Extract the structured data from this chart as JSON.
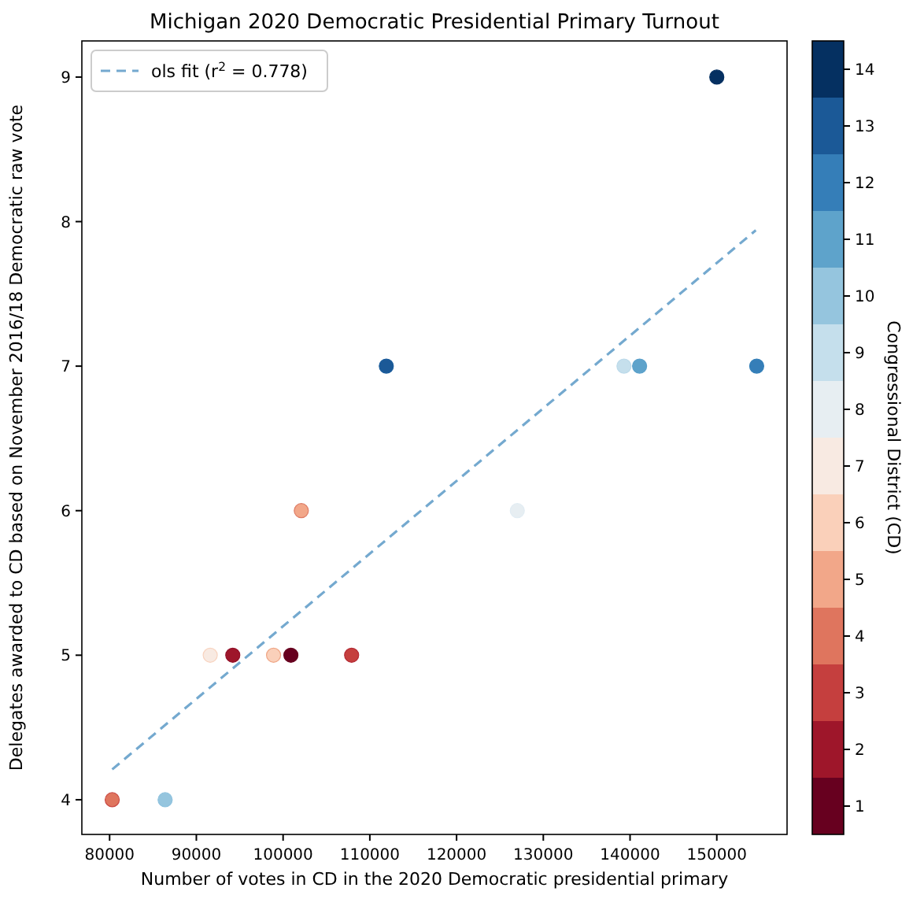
{
  "chart_data": {
    "type": "scatter",
    "title": "Michigan 2020 Democratic Presidential Primary Turnout",
    "xlabel": "Number of votes in CD in the 2020 Democratic presidential primary",
    "ylabel": "Delegates awarded to CD based on November 2016/18 Democratic raw vote",
    "clabel": "Congressional District (CD)",
    "xlim": [
      76800,
      158100
    ],
    "xticks": [
      80000,
      90000,
      100000,
      110000,
      120000,
      130000,
      140000,
      150000
    ],
    "ylim": [
      3.76,
      9.25
    ],
    "yticks": [
      4,
      5,
      6,
      7,
      8,
      9
    ],
    "clim": [
      0.5,
      14.5
    ],
    "cticks": [
      1,
      2,
      3,
      4,
      5,
      6,
      7,
      8,
      9,
      10,
      11,
      12,
      13,
      14
    ],
    "legend": "top left",
    "grid": false,
    "series": [
      {
        "marker": "circle",
        "colors": [
          "#67001f",
          "#93112a",
          "#b52b35",
          "#cb4b45",
          "#de7b64",
          "#efa686",
          "#f8d3bf",
          "#e1ecf3",
          "#bcdaea",
          "#8ec2de",
          "#5ba1cb",
          "#3580b9",
          "#1b5d9c",
          "#053061"
        ],
        "x": [
          100900,
          94200,
          107900,
          80300,
          102100,
          98900,
          91600,
          127000,
          139300,
          86400,
          141100,
          154600,
          111900,
          150000
        ],
        "values": [
          5,
          5,
          5,
          4,
          6,
          5,
          5,
          6,
          7,
          4,
          7,
          7,
          7,
          9
        ],
        "cvalues": [
          1,
          2,
          3,
          4,
          5,
          6,
          7,
          8,
          9,
          10,
          11,
          12,
          13,
          14
        ]
      },
      {
        "type": "line",
        "name": "ols fit (r$^{2}$ = 0.778)",
        "color": "#74a9cf",
        "line_style": "dashed",
        "x": [
          80300,
          154500
        ],
        "values": [
          4.21,
          7.94
        ]
      }
    ]
  }
}
